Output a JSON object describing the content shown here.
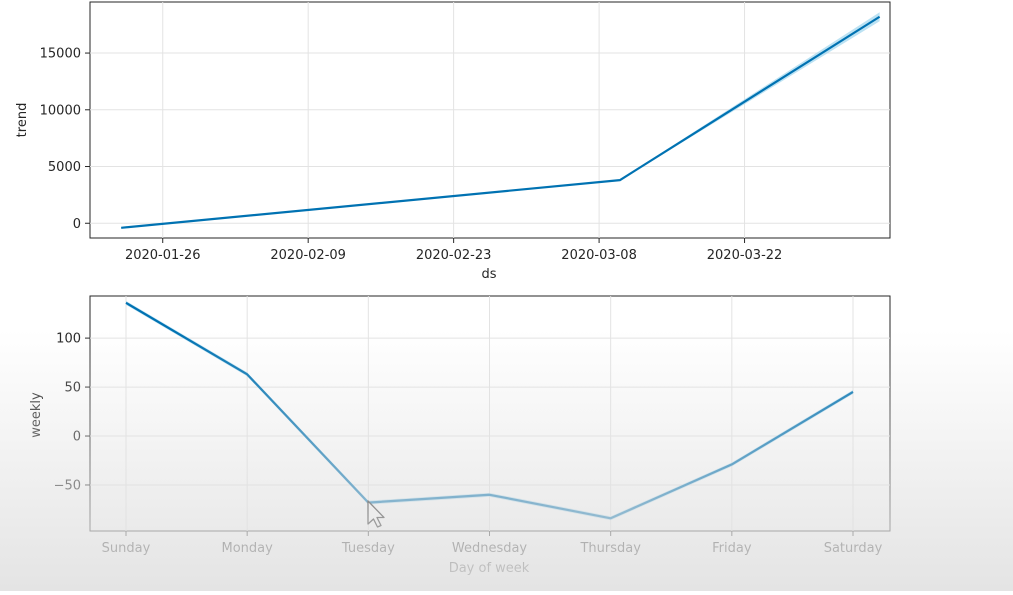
{
  "chart_data": [
    {
      "type": "line",
      "xlabel": "ds",
      "ylabel": "trend",
      "x_type": "date",
      "xlim": [
        "2020-01-19",
        "2020-04-05"
      ],
      "ylim": [
        -1300,
        19500
      ],
      "x_ticks": [
        "2020-01-26",
        "2020-02-09",
        "2020-02-23",
        "2020-03-08",
        "2020-03-22"
      ],
      "y_ticks": [
        0,
        5000,
        10000,
        15000
      ],
      "y_tick_labels": [
        "0",
        "5000",
        "10000",
        "15000"
      ],
      "grid": true,
      "series": [
        {
          "color": "#0072B2",
          "band_color": "#9fd6ee",
          "x": [
            "2020-01-22",
            "2020-03-10",
            "2020-04-04"
          ],
          "y": [
            -400,
            3800,
            18200
          ],
          "band_lower": [
            -450,
            3750,
            17800
          ],
          "band_upper": [
            -350,
            3850,
            18600
          ]
        }
      ]
    },
    {
      "type": "line",
      "xlabel": "Day of week",
      "ylabel": "weekly",
      "categories": [
        "Sunday",
        "Monday",
        "Tuesday",
        "Wednesday",
        "Thursday",
        "Friday",
        "Saturday"
      ],
      "ylim": [
        -97,
        143
      ],
      "y_ticks": [
        -50,
        0,
        50,
        100
      ],
      "y_tick_labels": [
        "−50",
        "0",
        "50",
        "100"
      ],
      "grid": true,
      "series": [
        {
          "color": "#0072B2",
          "band_color": "#9fd6ee",
          "values": [
            136,
            63,
            -68,
            -60,
            -84,
            -29,
            45
          ],
          "band_lower": [
            134,
            61,
            -70,
            -62,
            -86,
            -31,
            43
          ],
          "band_upper": [
            138,
            65,
            -66,
            -58,
            -82,
            -27,
            47
          ]
        }
      ]
    }
  ]
}
